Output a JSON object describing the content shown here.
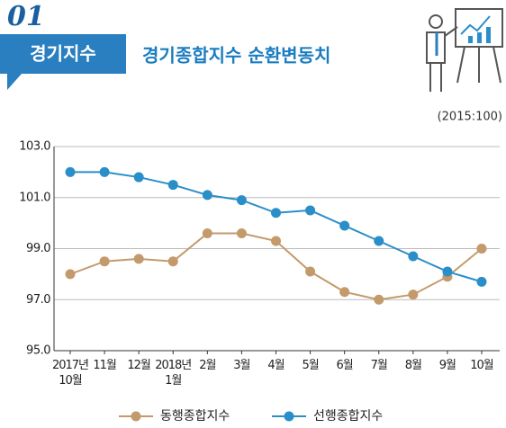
{
  "header": {
    "badge": "01",
    "section": "경기지수",
    "title": "경기종합지수 순환변동치"
  },
  "chart_data": {
    "type": "line",
    "unit": "(2015:100)",
    "categories": [
      "2017년 10월",
      "11월",
      "12월",
      "2018년 1월",
      "2월",
      "3월",
      "4월",
      "5월",
      "6월",
      "7월",
      "8월",
      "9월",
      "10월"
    ],
    "series": [
      {
        "name": "동행종합지수",
        "color": "#c39a6b",
        "values": [
          98.0,
          98.5,
          98.6,
          98.5,
          99.6,
          99.6,
          99.3,
          98.1,
          97.3,
          97.0,
          97.2,
          97.9,
          99.0
        ]
      },
      {
        "name": "선행종합지수",
        "color": "#2a8ec9",
        "values": [
          102.0,
          102.0,
          101.8,
          101.5,
          101.1,
          100.9,
          100.4,
          100.5,
          99.9,
          99.3,
          98.7,
          98.1,
          97.7
        ]
      }
    ],
    "ylim": [
      95,
      103
    ],
    "yticks": [
      {
        "value": 95,
        "label": "95.0"
      },
      {
        "value": 97,
        "label": "97.0"
      },
      {
        "value": 99,
        "label": "99.0"
      },
      {
        "value": 101,
        "label": "101.0"
      },
      {
        "value": 103,
        "label": "103.0"
      }
    ],
    "grid": true
  }
}
